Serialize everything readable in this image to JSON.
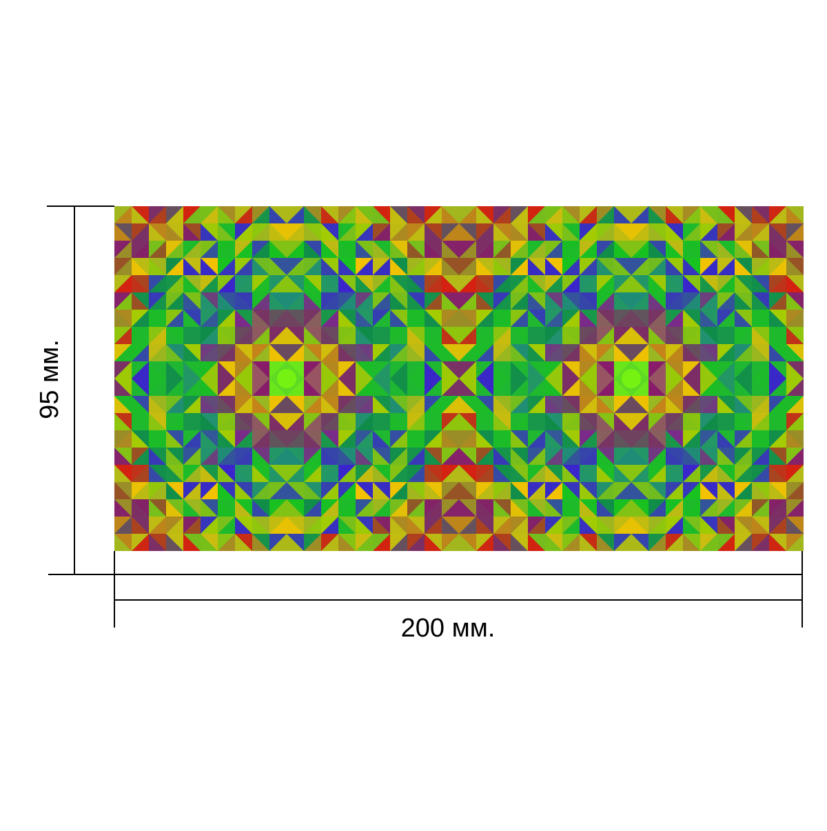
{
  "dimensions": {
    "width_label": "200 мм.",
    "height_label": "95 мм."
  },
  "pattern": {
    "description_colors": [
      "#d81f10",
      "#f07a0c",
      "#f2c200",
      "#a6cc00",
      "#18c21e",
      "#0d8a4a",
      "#1f8a7a",
      "#3a1fd0",
      "#8a1a6a",
      "#d4266e",
      "#7a2a88"
    ],
    "center_color": "#76f212",
    "repeat_count": 2
  },
  "colors": {
    "line": "#000000",
    "background": "#ffffff"
  }
}
